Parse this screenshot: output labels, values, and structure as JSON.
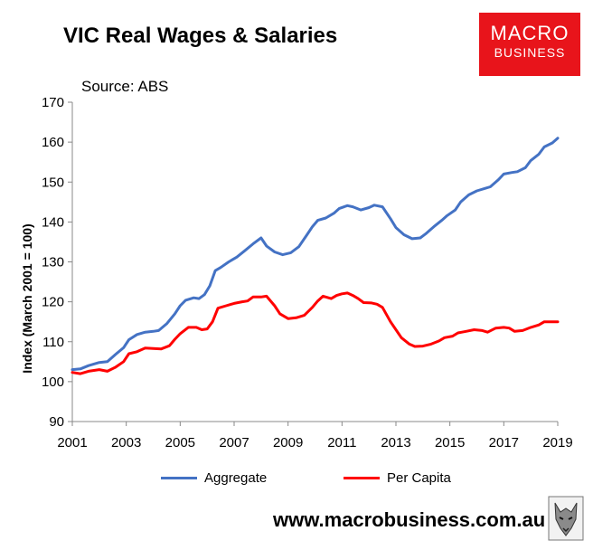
{
  "title": "VIC Real Wages & Salaries",
  "source": "Source: ABS",
  "logo": {
    "line1": "MACRO",
    "line2": "BUSINESS"
  },
  "footer_url": "www.macrobusiness.com.au",
  "colors": {
    "aggregate": "#4472c4",
    "per_capita": "#ff0000",
    "logo_bg": "#e8141b"
  },
  "chart_data": {
    "type": "line",
    "ylabel": "Index (March 2001 = 100)",
    "xlabel": "",
    "ylim": [
      90,
      170
    ],
    "yticks": [
      90,
      100,
      110,
      120,
      130,
      140,
      150,
      160,
      170
    ],
    "xlim": [
      2001,
      2019
    ],
    "xticks": [
      2001,
      2003,
      2005,
      2007,
      2009,
      2011,
      2013,
      2015,
      2017,
      2019
    ],
    "grid": false,
    "legend": "bottom",
    "series": [
      {
        "name": "Aggregate",
        "color": "#4472c4",
        "points": [
          [
            2001.0,
            103.0
          ],
          [
            2001.3,
            103.2
          ],
          [
            2001.6,
            104.0
          ],
          [
            2002.0,
            104.8
          ],
          [
            2002.3,
            105.0
          ],
          [
            2002.6,
            106.8
          ],
          [
            2002.9,
            108.5
          ],
          [
            2003.1,
            110.5
          ],
          [
            2003.4,
            111.8
          ],
          [
            2003.7,
            112.4
          ],
          [
            2004.0,
            112.6
          ],
          [
            2004.2,
            112.8
          ],
          [
            2004.5,
            114.5
          ],
          [
            2004.8,
            117.0
          ],
          [
            2005.0,
            119.0
          ],
          [
            2005.2,
            120.4
          ],
          [
            2005.5,
            121.0
          ],
          [
            2005.7,
            120.8
          ],
          [
            2005.9,
            121.8
          ],
          [
            2006.1,
            124.0
          ],
          [
            2006.3,
            127.8
          ],
          [
            2006.5,
            128.6
          ],
          [
            2006.8,
            130.0
          ],
          [
            2007.1,
            131.2
          ],
          [
            2007.4,
            132.8
          ],
          [
            2007.7,
            134.5
          ],
          [
            2008.0,
            136.0
          ],
          [
            2008.2,
            134.0
          ],
          [
            2008.5,
            132.5
          ],
          [
            2008.8,
            131.8
          ],
          [
            2009.1,
            132.3
          ],
          [
            2009.4,
            133.8
          ],
          [
            2009.7,
            136.8
          ],
          [
            2009.9,
            138.8
          ],
          [
            2010.1,
            140.4
          ],
          [
            2010.4,
            141.0
          ],
          [
            2010.7,
            142.2
          ],
          [
            2010.9,
            143.4
          ],
          [
            2011.2,
            144.1
          ],
          [
            2011.4,
            143.8
          ],
          [
            2011.7,
            143.0
          ],
          [
            2012.0,
            143.6
          ],
          [
            2012.2,
            144.2
          ],
          [
            2012.5,
            143.8
          ],
          [
            2012.8,
            140.8
          ],
          [
            2013.0,
            138.6
          ],
          [
            2013.3,
            136.8
          ],
          [
            2013.6,
            135.8
          ],
          [
            2013.9,
            136.0
          ],
          [
            2014.1,
            137.0
          ],
          [
            2014.4,
            138.8
          ],
          [
            2014.7,
            140.4
          ],
          [
            2014.9,
            141.6
          ],
          [
            2015.2,
            143.0
          ],
          [
            2015.4,
            145.0
          ],
          [
            2015.7,
            146.8
          ],
          [
            2016.0,
            147.8
          ],
          [
            2016.3,
            148.4
          ],
          [
            2016.5,
            148.8
          ],
          [
            2016.8,
            150.6
          ],
          [
            2017.0,
            152.0
          ],
          [
            2017.3,
            152.4
          ],
          [
            2017.5,
            152.6
          ],
          [
            2017.8,
            153.6
          ],
          [
            2018.0,
            155.4
          ],
          [
            2018.3,
            157.0
          ],
          [
            2018.5,
            158.8
          ],
          [
            2018.8,
            159.8
          ],
          [
            2019.0,
            161.0
          ]
        ]
      },
      {
        "name": "Per Capita",
        "color": "#ff0000",
        "points": [
          [
            2001.0,
            102.3
          ],
          [
            2001.3,
            102.0
          ],
          [
            2001.6,
            102.6
          ],
          [
            2002.0,
            103.0
          ],
          [
            2002.3,
            102.6
          ],
          [
            2002.6,
            103.6
          ],
          [
            2002.9,
            105.0
          ],
          [
            2003.1,
            107.0
          ],
          [
            2003.4,
            107.5
          ],
          [
            2003.7,
            108.4
          ],
          [
            2004.0,
            108.3
          ],
          [
            2004.3,
            108.2
          ],
          [
            2004.6,
            109.0
          ],
          [
            2004.8,
            110.6
          ],
          [
            2005.0,
            112.0
          ],
          [
            2005.3,
            113.6
          ],
          [
            2005.6,
            113.6
          ],
          [
            2005.8,
            113.0
          ],
          [
            2006.0,
            113.2
          ],
          [
            2006.2,
            115.0
          ],
          [
            2006.4,
            118.4
          ],
          [
            2006.7,
            119.0
          ],
          [
            2007.0,
            119.6
          ],
          [
            2007.3,
            120.0
          ],
          [
            2007.5,
            120.2
          ],
          [
            2007.7,
            121.2
          ],
          [
            2008.0,
            121.2
          ],
          [
            2008.2,
            121.4
          ],
          [
            2008.5,
            119.0
          ],
          [
            2008.7,
            117.0
          ],
          [
            2009.0,
            115.8
          ],
          [
            2009.3,
            116.0
          ],
          [
            2009.6,
            116.6
          ],
          [
            2009.9,
            118.6
          ],
          [
            2010.1,
            120.2
          ],
          [
            2010.3,
            121.4
          ],
          [
            2010.6,
            120.8
          ],
          [
            2010.8,
            121.6
          ],
          [
            2011.0,
            122.0
          ],
          [
            2011.2,
            122.2
          ],
          [
            2011.4,
            121.6
          ],
          [
            2011.6,
            120.8
          ],
          [
            2011.8,
            119.8
          ],
          [
            2012.1,
            119.7
          ],
          [
            2012.3,
            119.4
          ],
          [
            2012.5,
            118.6
          ],
          [
            2012.8,
            115.0
          ],
          [
            2013.0,
            113.0
          ],
          [
            2013.2,
            111.0
          ],
          [
            2013.5,
            109.4
          ],
          [
            2013.7,
            108.8
          ],
          [
            2014.0,
            108.9
          ],
          [
            2014.3,
            109.4
          ],
          [
            2014.6,
            110.2
          ],
          [
            2014.8,
            111.0
          ],
          [
            2015.1,
            111.4
          ],
          [
            2015.3,
            112.2
          ],
          [
            2015.6,
            112.6
          ],
          [
            2015.9,
            113.0
          ],
          [
            2016.2,
            112.8
          ],
          [
            2016.4,
            112.4
          ],
          [
            2016.7,
            113.4
          ],
          [
            2017.0,
            113.6
          ],
          [
            2017.2,
            113.4
          ],
          [
            2017.4,
            112.6
          ],
          [
            2017.7,
            112.8
          ],
          [
            2018.0,
            113.6
          ],
          [
            2018.3,
            114.2
          ],
          [
            2018.5,
            115.0
          ],
          [
            2018.8,
            115.0
          ],
          [
            2019.0,
            115.0
          ]
        ]
      }
    ]
  }
}
